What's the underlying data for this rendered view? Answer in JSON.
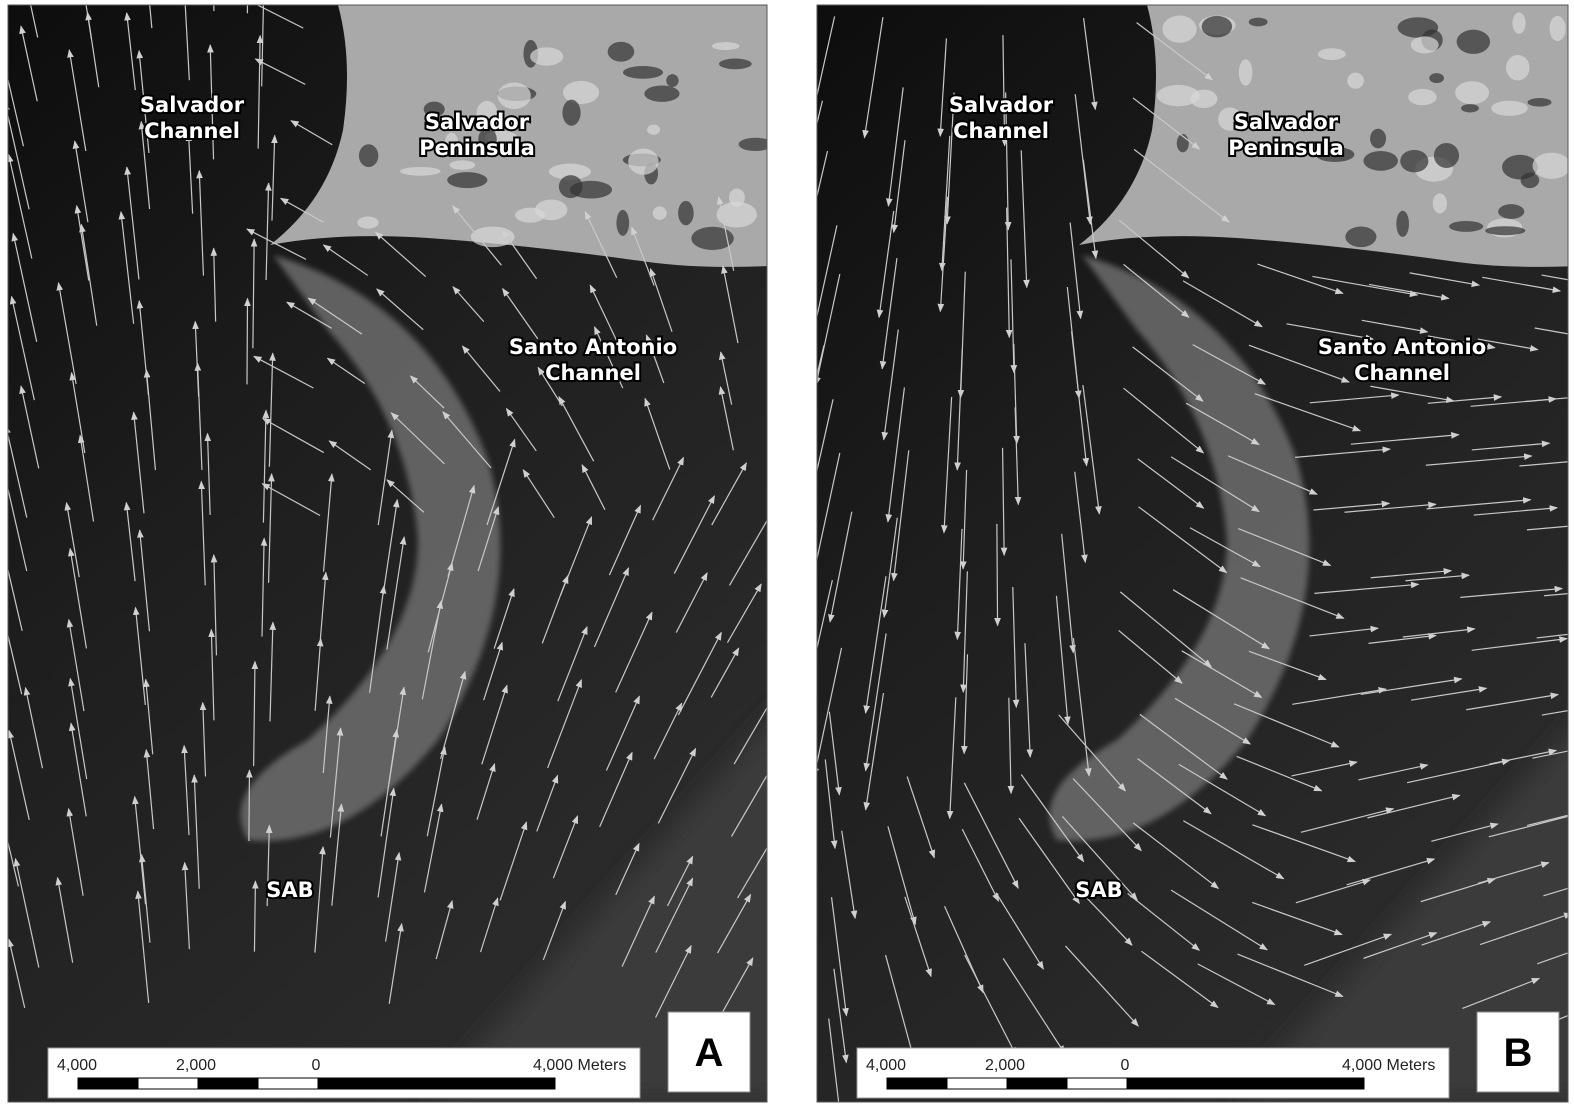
{
  "panels": [
    {
      "letter": "A",
      "labels": [
        {
          "lines": [
            "Salvador",
            "Channel"
          ]
        },
        {
          "lines": [
            "Salvador",
            "Peninsula"
          ]
        },
        {
          "lines": [
            "Santo Antonio",
            "Channel"
          ]
        },
        {
          "lines": [
            "SAB"
          ]
        }
      ],
      "scale_labels": [
        "4,000",
        "2,000",
        "0",
        "4,000 Meters"
      ]
    },
    {
      "letter": "B",
      "labels": [
        {
          "lines": [
            "Salvador",
            "Channel"
          ]
        },
        {
          "lines": [
            "Salvador",
            "Peninsula"
          ]
        },
        {
          "lines": [
            "Santo Antonio",
            "Channel"
          ]
        },
        {
          "lines": [
            "SAB"
          ]
        }
      ],
      "scale_labels": [
        "4,000",
        "2,000",
        "0",
        "4,000 Meters"
      ]
    }
  ]
}
